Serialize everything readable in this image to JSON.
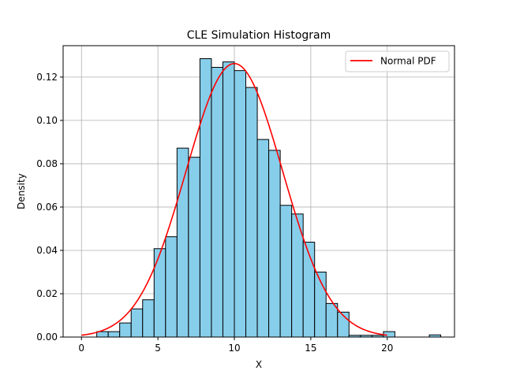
{
  "chart_data": {
    "type": "bar",
    "title": "CLE Simulation Histogram",
    "xlabel": "X",
    "ylabel": "Density",
    "xlim": [
      -1.2,
      24.4
    ],
    "ylim": [
      0,
      0.1345
    ],
    "xticks": [
      0,
      5,
      10,
      15,
      20
    ],
    "yticks": [
      0.0,
      0.02,
      0.04,
      0.06,
      0.08,
      0.1,
      0.12
    ],
    "ytick_labels": [
      "0.00",
      "0.02",
      "0.04",
      "0.06",
      "0.08",
      "0.10",
      "0.12"
    ],
    "grid": true,
    "legend_position": "top-right",
    "bin_width": 0.75,
    "bins": [
      {
        "x0": 1.0,
        "density": 0.0025
      },
      {
        "x0": 1.75,
        "density": 0.0025
      },
      {
        "x0": 2.5,
        "density": 0.0065
      },
      {
        "x0": 3.25,
        "density": 0.013
      },
      {
        "x0": 4.0,
        "density": 0.0172
      },
      {
        "x0": 4.75,
        "density": 0.0408
      },
      {
        "x0": 5.5,
        "density": 0.0463
      },
      {
        "x0": 6.25,
        "density": 0.0872
      },
      {
        "x0": 7.0,
        "density": 0.083
      },
      {
        "x0": 7.75,
        "density": 0.1285
      },
      {
        "x0": 8.5,
        "density": 0.1245
      },
      {
        "x0": 9.25,
        "density": 0.127
      },
      {
        "x0": 10.0,
        "density": 0.123
      },
      {
        "x0": 10.75,
        "density": 0.1152
      },
      {
        "x0": 11.5,
        "density": 0.0912
      },
      {
        "x0": 12.25,
        "density": 0.0862
      },
      {
        "x0": 13.0,
        "density": 0.0608
      },
      {
        "x0": 13.75,
        "density": 0.0568
      },
      {
        "x0": 14.5,
        "density": 0.0438
      },
      {
        "x0": 15.25,
        "density": 0.03
      },
      {
        "x0": 16.0,
        "density": 0.0155
      },
      {
        "x0": 16.75,
        "density": 0.0115
      },
      {
        "x0": 17.5,
        "density": 0.0008
      },
      {
        "x0": 18.25,
        "density": 0.0008
      },
      {
        "x0": 19.0,
        "density": 0.0008
      },
      {
        "x0": 19.75,
        "density": 0.0025
      },
      {
        "x0": 22.75,
        "density": 0.001
      }
    ],
    "series": [
      {
        "name": "Normal PDF",
        "type": "line",
        "mean": 10.0,
        "std": 3.16,
        "x_range": [
          0,
          20
        ]
      }
    ],
    "colors": {
      "bar_fill": "#87ceeb",
      "bar_edge": "#000000",
      "line": "#ff0000",
      "grid": "#b0b0b0"
    }
  }
}
